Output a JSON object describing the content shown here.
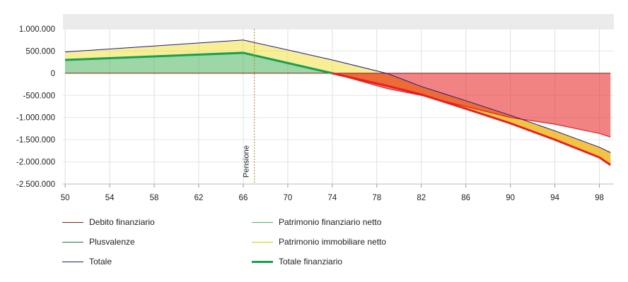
{
  "chart_data": {
    "type": "area",
    "x": [
      50,
      66,
      74,
      79,
      82,
      86,
      90,
      94,
      98,
      99
    ],
    "xticks": [
      50,
      54,
      58,
      62,
      66,
      70,
      74,
      78,
      82,
      86,
      90,
      94,
      98
    ],
    "xlim": [
      49.8,
      99.3
    ],
    "ylim": [
      -2500000,
      1000000
    ],
    "yticks": [
      1000000,
      500000,
      0,
      -500000,
      -1000000,
      -1500000,
      -2000000,
      -2500000
    ],
    "ytick_labels": [
      "1.000.000",
      "500.000",
      "0",
      "-500.000",
      "-1.000.000",
      "-1.500.000",
      "-2.000.000",
      "-2.500.000"
    ],
    "grid": true,
    "legend_position": "bottom",
    "series": [
      {
        "name": "Debito finanziario",
        "values": [
          0,
          0,
          0,
          0,
          0,
          0,
          0,
          0,
          0,
          0
        ],
        "color": "#8b1a1a"
      },
      {
        "name": "Patrimonio finanziario netto",
        "values": [
          300000,
          460000,
          0,
          -350000,
          -500000,
          -750000,
          -1000000,
          -1150000,
          -1360000,
          -1440000
        ],
        "color": "#e83030"
      },
      {
        "name": "Plusvalenze",
        "values": [
          300000,
          460000,
          0,
          0,
          0,
          0,
          0,
          0,
          0,
          0
        ],
        "color": "#2e8b57"
      },
      {
        "name": "Patrimonio immobiliare netto",
        "values": [
          480000,
          750000,
          300000,
          -10000,
          -300000,
          -620000,
          -950000,
          -1300000,
          -1670000,
          -1790000
        ],
        "color": "#f2e24a"
      },
      {
        "name": "Totale",
        "values": [
          480000,
          750000,
          300000,
          -10000,
          -300000,
          -620000,
          -950000,
          -1300000,
          -1670000,
          -1790000
        ],
        "color": "#1a1a8c"
      },
      {
        "name": "Totale finanziario",
        "values": [
          300000,
          460000,
          0,
          -290000,
          -480000,
          -800000,
          -1130000,
          -1500000,
          -1900000,
          -2070000
        ],
        "color": "#e62020"
      }
    ],
    "annotations": [
      {
        "x": 67,
        "label": "Pensione"
      }
    ]
  },
  "legend": [
    {
      "label": "Debito finanziario",
      "color": "#8b1a1a",
      "thick": false
    },
    {
      "label": "Patrimonio finanziario netto",
      "color": "#3cb371",
      "thick": false
    },
    {
      "label": "Plusvalenze",
      "color": "#1e7a3c",
      "thick": false
    },
    {
      "label": "Patrimonio immobiliare netto",
      "color": "#f0c000",
      "thick": false
    },
    {
      "label": "Totale",
      "color": "#1a1a8c",
      "thick": false
    },
    {
      "label": "Totale finanziario",
      "color": "#18a050",
      "thick": true
    }
  ]
}
